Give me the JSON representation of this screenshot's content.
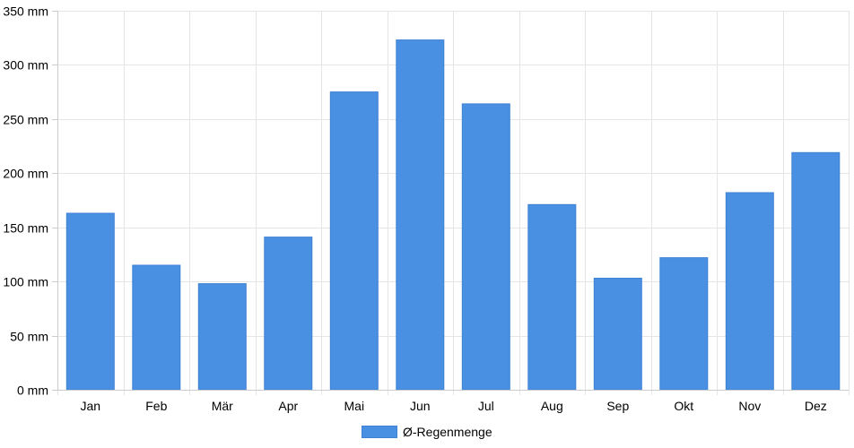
{
  "chart_data": {
    "type": "bar",
    "categories": [
      "Jan",
      "Feb",
      "Mär",
      "Apr",
      "Mai",
      "Jun",
      "Jul",
      "Aug",
      "Sep",
      "Okt",
      "Nov",
      "Dez"
    ],
    "series": [
      {
        "name": "Ø-Regenmenge",
        "values": [
          163,
          115,
          98,
          141,
          275,
          323,
          264,
          171,
          103,
          122,
          182,
          219
        ]
      }
    ],
    "ylim": [
      0,
      350
    ],
    "yticks": [
      0,
      50,
      100,
      150,
      200,
      250,
      300,
      350
    ],
    "y_unit": "mm",
    "title": "",
    "xlabel": "",
    "ylabel": "",
    "grid": true,
    "legend_position": "bottom-center",
    "colors": {
      "bar": "#4a90e2",
      "grid": "#e5e5e5",
      "axis": "#cccccc"
    }
  }
}
